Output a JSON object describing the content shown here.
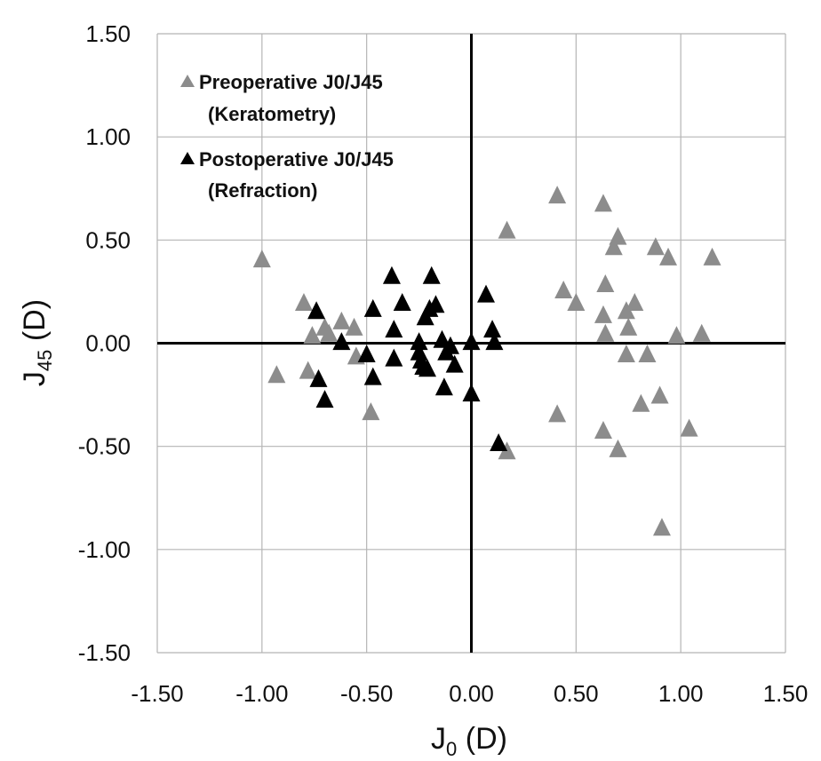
{
  "chart_data": {
    "type": "scatter",
    "xlabel": {
      "main": "J",
      "sub": "0",
      "unit": " (D)"
    },
    "ylabel": {
      "main": "J",
      "sub": "45",
      "unit": " (D)"
    },
    "xlim": [
      -1.5,
      1.5
    ],
    "ylim": [
      -1.5,
      1.5
    ],
    "xticks": [
      -1.5,
      -1.0,
      -0.5,
      0.0,
      0.5,
      1.0,
      1.5
    ],
    "yticks": [
      -1.5,
      -1.0,
      -0.5,
      0.0,
      0.5,
      1.0,
      1.5
    ],
    "xtick_labels": [
      "-1.50",
      "-1.00",
      "-0.50",
      "0.00",
      "0.50",
      "1.00",
      "1.50"
    ],
    "ytick_labels": [
      "-1.50",
      "-1.00",
      "-0.50",
      "0.00",
      "0.50",
      "1.00",
      "1.50"
    ],
    "grid": true,
    "legend_position": "top-left",
    "series": [
      {
        "name": "Preoperative J0/J45",
        "name_line2": "(Keratometry)",
        "color": "#8c8c8c",
        "marker": "triangle",
        "points": [
          [
            -1.0,
            0.4
          ],
          [
            -0.93,
            -0.16
          ],
          [
            -0.8,
            0.19
          ],
          [
            -0.78,
            -0.14
          ],
          [
            -0.76,
            0.03
          ],
          [
            -0.7,
            0.07
          ],
          [
            -0.68,
            0.04
          ],
          [
            -0.62,
            0.1
          ],
          [
            -0.56,
            0.07
          ],
          [
            -0.55,
            -0.07
          ],
          [
            -0.48,
            -0.34
          ],
          [
            0.17,
            0.54
          ],
          [
            0.17,
            -0.53
          ],
          [
            0.41,
            0.71
          ],
          [
            0.41,
            -0.35
          ],
          [
            0.44,
            0.25
          ],
          [
            0.5,
            0.19
          ],
          [
            0.63,
            0.67
          ],
          [
            0.63,
            0.13
          ],
          [
            0.64,
            0.28
          ],
          [
            0.64,
            0.04
          ],
          [
            0.63,
            -0.43
          ],
          [
            0.68,
            0.46
          ],
          [
            0.7,
            0.51
          ],
          [
            0.7,
            -0.52
          ],
          [
            0.74,
            0.15
          ],
          [
            0.75,
            0.07
          ],
          [
            0.74,
            -0.06
          ],
          [
            0.78,
            0.19
          ],
          [
            0.81,
            -0.3
          ],
          [
            0.84,
            -0.06
          ],
          [
            0.88,
            0.46
          ],
          [
            0.9,
            -0.26
          ],
          [
            0.94,
            0.41
          ],
          [
            0.91,
            -0.9
          ],
          [
            0.98,
            0.03
          ],
          [
            1.04,
            -0.42
          ],
          [
            1.1,
            0.04
          ],
          [
            1.15,
            0.41
          ]
        ]
      },
      {
        "name": "Postoperative J0/J45",
        "name_line2": "(Refraction)",
        "color": "#000000",
        "marker": "triangle",
        "points": [
          [
            -0.74,
            0.15
          ],
          [
            -0.73,
            -0.18
          ],
          [
            -0.7,
            -0.28
          ],
          [
            -0.62,
            0.0
          ],
          [
            -0.5,
            -0.06
          ],
          [
            -0.47,
            0.16
          ],
          [
            -0.47,
            -0.17
          ],
          [
            -0.38,
            0.32
          ],
          [
            -0.37,
            0.06
          ],
          [
            -0.37,
            -0.08
          ],
          [
            -0.33,
            0.19
          ],
          [
            -0.25,
            0.0
          ],
          [
            -0.25,
            -0.05
          ],
          [
            -0.24,
            -0.09
          ],
          [
            -0.23,
            -0.12
          ],
          [
            -0.22,
            0.12
          ],
          [
            -0.21,
            -0.13
          ],
          [
            -0.2,
            0.16
          ],
          [
            -0.19,
            0.32
          ],
          [
            -0.17,
            0.18
          ],
          [
            -0.14,
            0.01
          ],
          [
            -0.13,
            -0.22
          ],
          [
            -0.12,
            -0.05
          ],
          [
            -0.1,
            -0.02
          ],
          [
            -0.08,
            -0.11
          ],
          [
            0.0,
            0.0
          ],
          [
            0.0,
            -0.25
          ],
          [
            0.07,
            0.23
          ],
          [
            0.1,
            0.06
          ],
          [
            0.11,
            0.0
          ],
          [
            0.13,
            -0.49
          ]
        ]
      }
    ]
  }
}
